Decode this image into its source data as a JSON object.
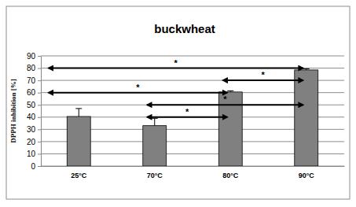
{
  "chart_data": {
    "type": "bar",
    "title": "buckwheat",
    "y_label": "DPPH inhibition [%]",
    "categories": [
      "25°C",
      "70°C",
      "80°C",
      "90°C"
    ],
    "values": [
      40.5,
      33,
      60.5,
      78.5
    ],
    "errors": [
      6.5,
      6,
      1,
      1
    ],
    "color": "#808080",
    "ylim": [
      0,
      90
    ],
    "yticks": [
      0,
      10,
      20,
      30,
      40,
      50,
      60,
      70,
      80,
      90
    ],
    "grid": true,
    "annotations": [
      {
        "text": "*",
        "from": "25°C",
        "to": "90°C",
        "y": 80
      },
      {
        "text": "*",
        "from": "80°C",
        "to": "90°C",
        "y": 70
      },
      {
        "text": "*",
        "from": "25°C",
        "to": "80°C",
        "y": 60
      },
      {
        "text": "*",
        "from": "70°C",
        "to": "90°C",
        "y": 50
      },
      {
        "text": "*",
        "from": "70°C",
        "to": "80°C",
        "y": 40
      }
    ]
  }
}
